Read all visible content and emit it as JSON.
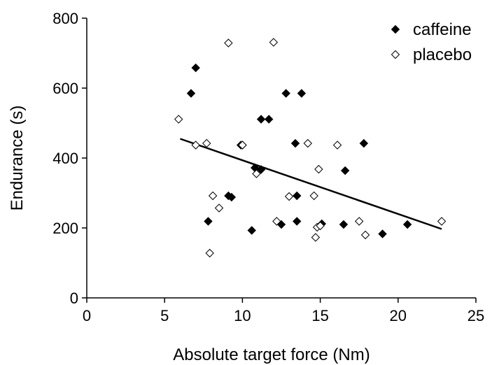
{
  "chart_data": {
    "type": "scatter",
    "xlabel": "Absolute target force (Nm)",
    "ylabel": "Endurance (s)",
    "xlim": [
      0,
      25
    ],
    "ylim": [
      0,
      800
    ],
    "x_ticks": [
      "0",
      "5",
      "10",
      "15",
      "20",
      "25"
    ],
    "y_ticks": [
      "0",
      "200",
      "400",
      "600",
      "800"
    ],
    "grid": false,
    "legend_position": "top-right",
    "series": [
      {
        "name": "caffeine",
        "marker": "filled-diamond",
        "color": "#000000",
        "points": [
          [
            7.0,
            658
          ],
          [
            6.7,
            585
          ],
          [
            12.8,
            585
          ],
          [
            13.8,
            585
          ],
          [
            11.2,
            511
          ],
          [
            11.7,
            511
          ],
          [
            9.9,
            437
          ],
          [
            10.0,
            437
          ],
          [
            13.4,
            442
          ],
          [
            17.8,
            442
          ],
          [
            10.8,
            372
          ],
          [
            11.2,
            367
          ],
          [
            16.6,
            364
          ],
          [
            9.1,
            292
          ],
          [
            9.3,
            288
          ],
          [
            13.5,
            292
          ],
          [
            7.8,
            219
          ],
          [
            13.5,
            219
          ],
          [
            10.6,
            193
          ],
          [
            12.5,
            210
          ],
          [
            15.1,
            212
          ],
          [
            16.5,
            210
          ],
          [
            19.0,
            183
          ],
          [
            20.6,
            210
          ]
        ]
      },
      {
        "name": "placebo",
        "marker": "open-diamond",
        "color": "#000000",
        "points": [
          [
            9.1,
            729
          ],
          [
            12.0,
            731
          ],
          [
            5.9,
            511
          ],
          [
            7.0,
            437
          ],
          [
            7.7,
            442
          ],
          [
            10.0,
            437
          ],
          [
            14.2,
            442
          ],
          [
            16.1,
            437
          ],
          [
            10.9,
            355
          ],
          [
            14.9,
            368
          ],
          [
            8.1,
            292
          ],
          [
            8.5,
            257
          ],
          [
            13.0,
            290
          ],
          [
            14.6,
            292
          ],
          [
            12.2,
            219
          ],
          [
            14.8,
            202
          ],
          [
            15.0,
            206
          ],
          [
            17.5,
            219
          ],
          [
            17.9,
            180
          ],
          [
            14.7,
            173
          ],
          [
            7.9,
            128
          ],
          [
            22.8,
            219
          ]
        ]
      }
    ],
    "trendline": {
      "x": [
        6.0,
        22.8
      ],
      "y": [
        455,
        197
      ]
    }
  }
}
